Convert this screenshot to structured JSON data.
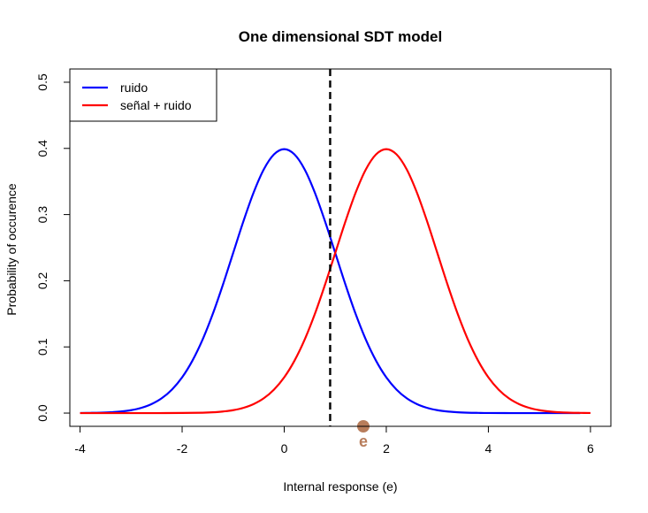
{
  "chart_data": {
    "type": "line",
    "title": "One dimensional SDT model",
    "xlabel": "Internal response (e)",
    "ylabel": "Probability of occurence",
    "xlim": [
      -4.2,
      6.4
    ],
    "ylim": [
      -0.02,
      0.52
    ],
    "x_ticks": [
      -4,
      -2,
      0,
      2,
      4,
      6
    ],
    "x_tick_labels": [
      "-4",
      "-2",
      "0",
      "2",
      "4",
      "6"
    ],
    "y_ticks": [
      0.0,
      0.1,
      0.2,
      0.3,
      0.4,
      0.5
    ],
    "y_tick_labels": [
      "0.0",
      "0.1",
      "0.2",
      "0.3",
      "0.4",
      "0.5"
    ],
    "grid": false,
    "legend_position": "top-left",
    "series": [
      {
        "name": "ruido",
        "color": "#0000ff",
        "x": [
          -4,
          -3.8,
          -3.6,
          -3.4,
          -3.2,
          -3.0,
          -2.8,
          -2.6,
          -2.4,
          -2.2,
          -2.0,
          -1.8,
          -1.6,
          -1.4,
          -1.2,
          -1.0,
          -0.8,
          -0.6,
          -0.4,
          -0.2,
          0.0,
          0.2,
          0.4,
          0.6,
          0.8,
          1.0,
          1.2,
          1.4,
          1.6,
          1.8,
          2.0,
          2.2,
          2.4,
          2.6,
          2.8,
          3.0,
          3.2,
          3.4,
          3.6,
          3.8,
          4.0,
          4.5,
          5.0,
          5.5,
          5.8
        ],
        "y": [
          0.0001,
          0.0003,
          0.0006,
          0.0012,
          0.0024,
          0.0044,
          0.0079,
          0.0136,
          0.0224,
          0.0355,
          0.054,
          0.079,
          0.1109,
          0.1497,
          0.1942,
          0.242,
          0.2897,
          0.3332,
          0.3683,
          0.391,
          0.3989,
          0.391,
          0.3683,
          0.3332,
          0.2897,
          0.242,
          0.1942,
          0.1497,
          0.1109,
          0.079,
          0.054,
          0.0355,
          0.0224,
          0.0136,
          0.0079,
          0.0044,
          0.0024,
          0.0012,
          0.0006,
          0.0003,
          0.0001,
          0.0,
          0.0,
          0.0,
          0.0
        ]
      },
      {
        "name": "señal + ruido",
        "color": "#ff0000",
        "x": [
          -4,
          -3.5,
          -3.0,
          -2.5,
          -2.0,
          -1.6,
          -1.4,
          -1.2,
          -1.0,
          -0.8,
          -0.6,
          -0.4,
          -0.2,
          0.0,
          0.2,
          0.4,
          0.6,
          0.8,
          1.0,
          1.2,
          1.4,
          1.6,
          1.8,
          2.0,
          2.2,
          2.4,
          2.6,
          2.8,
          3.0,
          3.2,
          3.4,
          3.6,
          3.8,
          4.0,
          4.2,
          4.4,
          4.6,
          4.8,
          5.0,
          5.2,
          5.4,
          5.6,
          5.8,
          6.0
        ],
        "y": [
          0.0,
          0.0,
          0.0,
          0.0,
          0.0002,
          0.0006,
          0.0012,
          0.0024,
          0.0044,
          0.0079,
          0.0136,
          0.0224,
          0.0355,
          0.054,
          0.079,
          0.1109,
          0.1497,
          0.1942,
          0.242,
          0.2897,
          0.3332,
          0.3683,
          0.391,
          0.3989,
          0.391,
          0.3683,
          0.3332,
          0.2897,
          0.242,
          0.1942,
          0.1497,
          0.1109,
          0.079,
          0.054,
          0.0355,
          0.0224,
          0.0136,
          0.0079,
          0.0044,
          0.0024,
          0.0012,
          0.0006,
          0.0003,
          0.0001
        ]
      }
    ],
    "criterion": {
      "x": 0.9,
      "color": "#000000",
      "style": "dashed"
    },
    "point": {
      "x": 1.55,
      "y": -0.02,
      "label": "e",
      "color": "#b87d5b"
    }
  }
}
